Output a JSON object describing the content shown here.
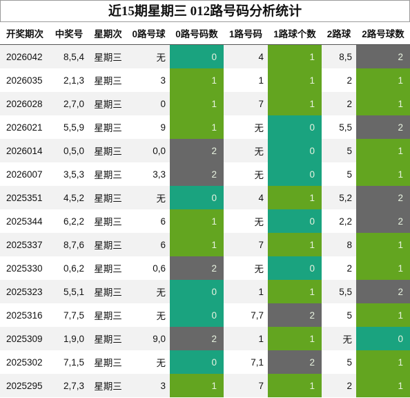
{
  "title": "近15期星期三 012路号码分析统计",
  "colors": {
    "zero": "#1aa37f",
    "one": "#63a520",
    "two": "#686868"
  },
  "headers": [
    "开奖期次",
    "中奖号",
    "星期次",
    "0路号球",
    "0路号码数",
    "1路号码",
    "1路球个数",
    "2路球",
    "2路号球数"
  ],
  "rows": [
    {
      "issue": "2026042",
      "nums": "8,5,4",
      "weekday": "星期三",
      "r0": "无",
      "c0": "0",
      "r1": "4",
      "c1": "1",
      "r2": "8,5",
      "c2": "2"
    },
    {
      "issue": "2026035",
      "nums": "2,1,3",
      "weekday": "星期三",
      "r0": "3",
      "c0": "1",
      "r1": "1",
      "c1": "1",
      "r2": "2",
      "c2": "1"
    },
    {
      "issue": "2026028",
      "nums": "2,7,0",
      "weekday": "星期三",
      "r0": "0",
      "c0": "1",
      "r1": "7",
      "c1": "1",
      "r2": "2",
      "c2": "1"
    },
    {
      "issue": "2026021",
      "nums": "5,5,9",
      "weekday": "星期三",
      "r0": "9",
      "c0": "1",
      "r1": "无",
      "c1": "0",
      "r2": "5,5",
      "c2": "2"
    },
    {
      "issue": "2026014",
      "nums": "0,5,0",
      "weekday": "星期三",
      "r0": "0,0",
      "c0": "2",
      "r1": "无",
      "c1": "0",
      "r2": "5",
      "c2": "1"
    },
    {
      "issue": "2026007",
      "nums": "3,5,3",
      "weekday": "星期三",
      "r0": "3,3",
      "c0": "2",
      "r1": "无",
      "c1": "0",
      "r2": "5",
      "c2": "1"
    },
    {
      "issue": "2025351",
      "nums": "4,5,2",
      "weekday": "星期三",
      "r0": "无",
      "c0": "0",
      "r1": "4",
      "c1": "1",
      "r2": "5,2",
      "c2": "2"
    },
    {
      "issue": "2025344",
      "nums": "6,2,2",
      "weekday": "星期三",
      "r0": "6",
      "c0": "1",
      "r1": "无",
      "c1": "0",
      "r2": "2,2",
      "c2": "2"
    },
    {
      "issue": "2025337",
      "nums": "8,7,6",
      "weekday": "星期三",
      "r0": "6",
      "c0": "1",
      "r1": "7",
      "c1": "1",
      "r2": "8",
      "c2": "1"
    },
    {
      "issue": "2025330",
      "nums": "0,6,2",
      "weekday": "星期三",
      "r0": "0,6",
      "c0": "2",
      "r1": "无",
      "c1": "0",
      "r2": "2",
      "c2": "1"
    },
    {
      "issue": "2025323",
      "nums": "5,5,1",
      "weekday": "星期三",
      "r0": "无",
      "c0": "0",
      "r1": "1",
      "c1": "1",
      "r2": "5,5",
      "c2": "2"
    },
    {
      "issue": "2025316",
      "nums": "7,7,5",
      "weekday": "星期三",
      "r0": "无",
      "c0": "0",
      "r1": "7,7",
      "c1": "2",
      "r2": "5",
      "c2": "1"
    },
    {
      "issue": "2025309",
      "nums": "1,9,0",
      "weekday": "星期三",
      "r0": "9,0",
      "c0": "2",
      "r1": "1",
      "c1": "1",
      "r2": "无",
      "c2": "0"
    },
    {
      "issue": "2025302",
      "nums": "7,1,5",
      "weekday": "星期三",
      "r0": "无",
      "c0": "0",
      "r1": "7,1",
      "c1": "2",
      "r2": "5",
      "c2": "1"
    },
    {
      "issue": "2025295",
      "nums": "2,7,3",
      "weekday": "星期三",
      "r0": "3",
      "c0": "1",
      "r1": "7",
      "c1": "1",
      "r2": "2",
      "c2": "1"
    }
  ]
}
